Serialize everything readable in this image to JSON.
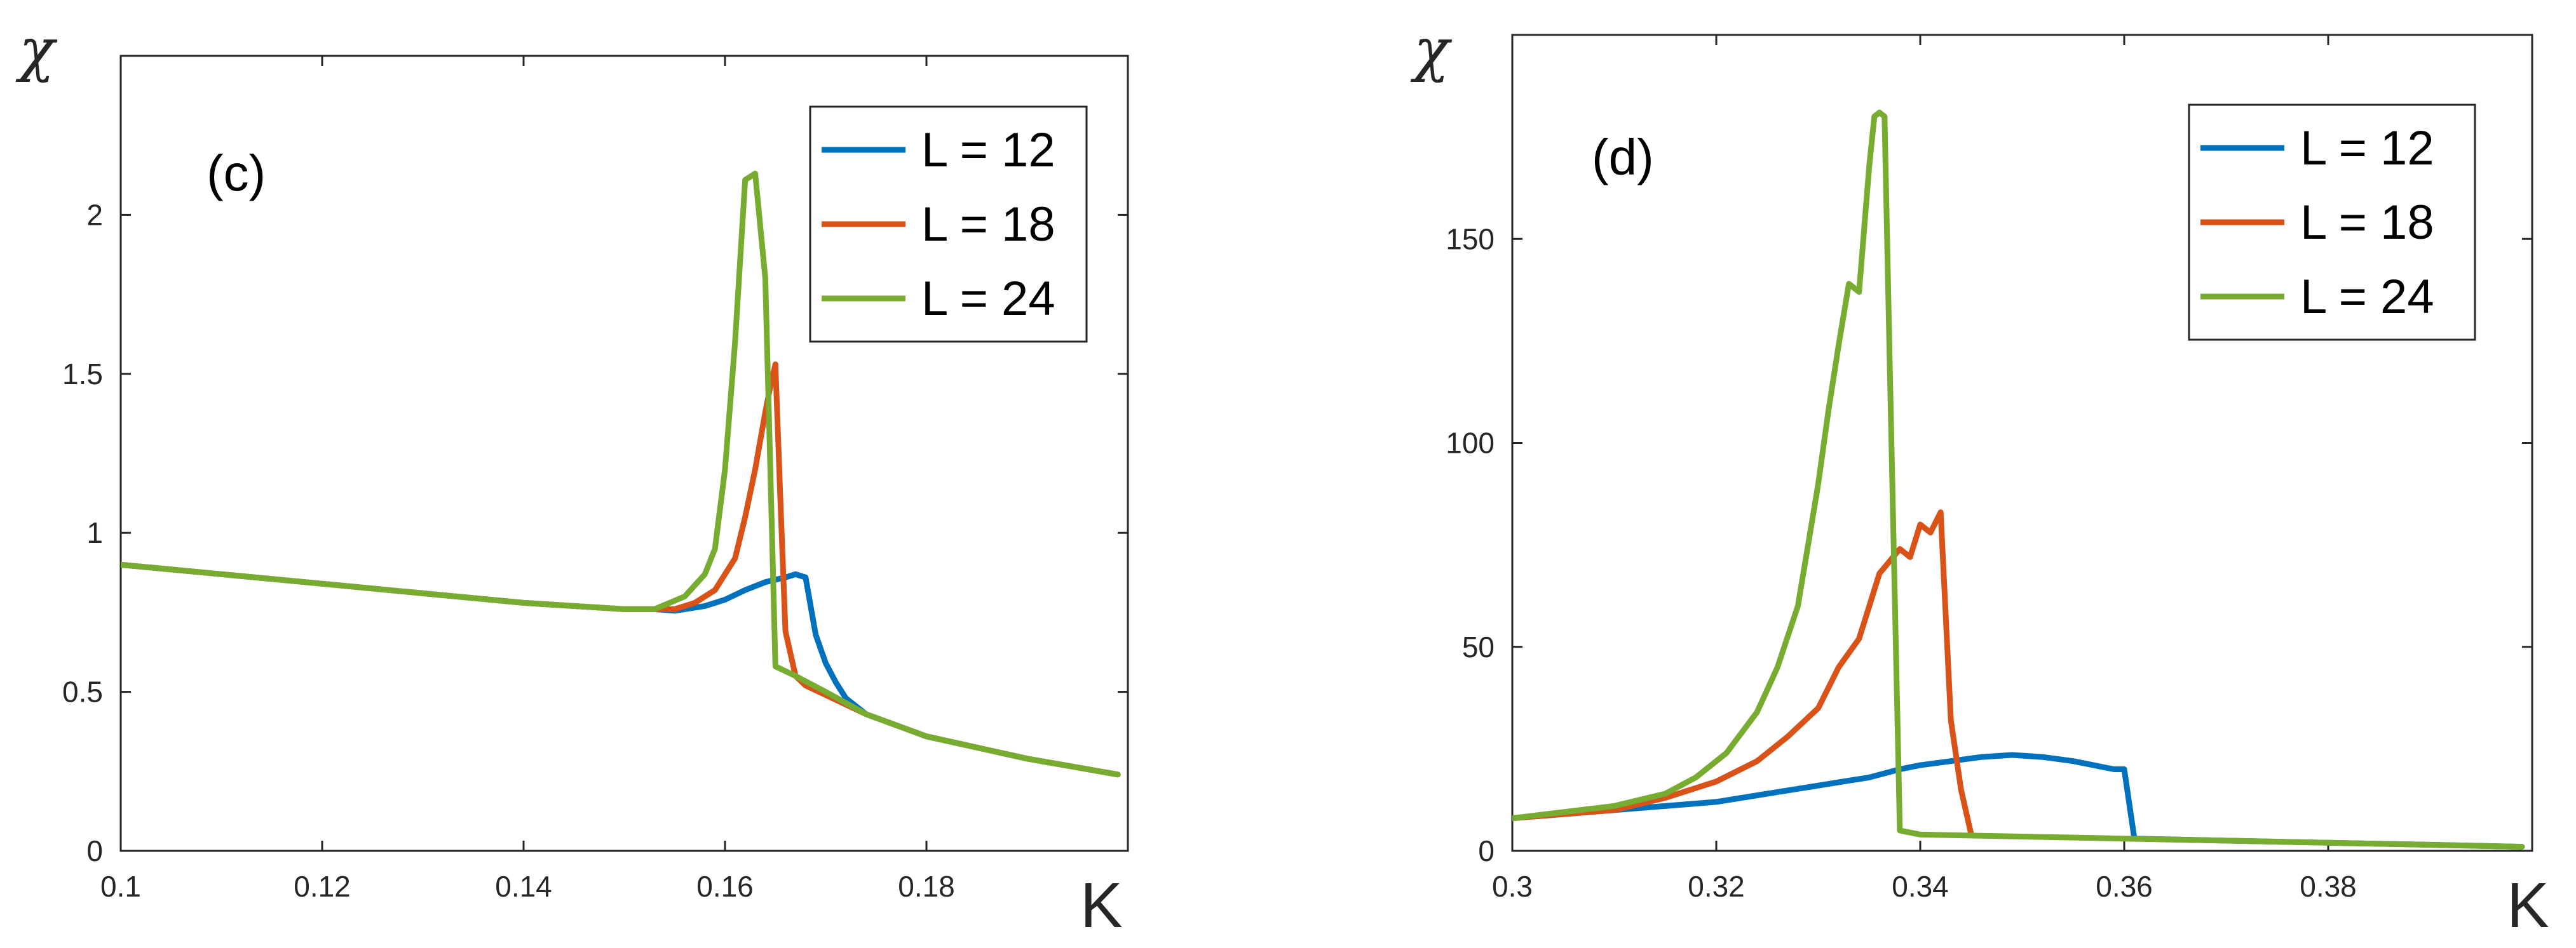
{
  "colors": {
    "L12": "#0072BD",
    "L18": "#D95319",
    "L24": "#77AC30",
    "axis": "#262626"
  },
  "chart_data": [
    {
      "type": "line",
      "panel_label": "(c)",
      "xlabel": "K",
      "ylabel": "χ",
      "xlim": [
        0.1,
        0.2
      ],
      "ylim": [
        0,
        2.5
      ],
      "xticks": [
        0.1,
        0.12,
        0.14,
        0.16,
        0.18
      ],
      "xtick_labels": [
        "0.1",
        "0.12",
        "0.14",
        "0.16",
        "0.18"
      ],
      "yticks": [
        0,
        0.5,
        1,
        1.5,
        2
      ],
      "ytick_labels": [
        "0",
        "0.5",
        "1",
        "1.5",
        "2"
      ],
      "legend_position": "top-right",
      "series": [
        {
          "name": "L = 12",
          "color": "#0072BD",
          "x": [
            0.1,
            0.11,
            0.12,
            0.13,
            0.14,
            0.15,
            0.153,
            0.155,
            0.158,
            0.16,
            0.162,
            0.164,
            0.166,
            0.167,
            0.168,
            0.169,
            0.17,
            0.171,
            0.172,
            0.174,
            0.18,
            0.19,
            0.199
          ],
          "y": [
            0.9,
            0.87,
            0.84,
            0.81,
            0.78,
            0.76,
            0.76,
            0.755,
            0.77,
            0.79,
            0.82,
            0.845,
            0.86,
            0.87,
            0.86,
            0.68,
            0.59,
            0.53,
            0.48,
            0.43,
            0.36,
            0.29,
            0.24
          ]
        },
        {
          "name": "L = 18",
          "color": "#D95319",
          "x": [
            0.1,
            0.11,
            0.12,
            0.13,
            0.14,
            0.15,
            0.155,
            0.157,
            0.159,
            0.161,
            0.162,
            0.163,
            0.164,
            0.1645,
            0.165,
            0.1655,
            0.166,
            0.167,
            0.168,
            0.17,
            0.174,
            0.18,
            0.19,
            0.199
          ],
          "y": [
            0.9,
            0.87,
            0.84,
            0.81,
            0.78,
            0.76,
            0.76,
            0.78,
            0.82,
            0.92,
            1.05,
            1.2,
            1.38,
            1.46,
            1.53,
            1.1,
            0.69,
            0.55,
            0.52,
            0.49,
            0.43,
            0.36,
            0.29,
            0.24
          ]
        },
        {
          "name": "L = 24",
          "color": "#77AC30",
          "x": [
            0.1,
            0.11,
            0.12,
            0.13,
            0.14,
            0.15,
            0.153,
            0.156,
            0.158,
            0.159,
            0.16,
            0.161,
            0.162,
            0.163,
            0.164,
            0.1645,
            0.165,
            0.167,
            0.17,
            0.174,
            0.18,
            0.19,
            0.199
          ],
          "y": [
            0.9,
            0.87,
            0.84,
            0.81,
            0.78,
            0.76,
            0.76,
            0.8,
            0.87,
            0.95,
            1.2,
            1.6,
            2.11,
            2.13,
            1.8,
            1.2,
            0.58,
            0.55,
            0.5,
            0.43,
            0.36,
            0.29,
            0.24
          ]
        }
      ]
    },
    {
      "type": "line",
      "panel_label": "(d)",
      "xlabel": "K",
      "ylabel": "χ",
      "xlim": [
        0.3,
        0.4
      ],
      "ylim": [
        0,
        200
      ],
      "xticks": [
        0.3,
        0.32,
        0.34,
        0.36,
        0.38
      ],
      "xtick_labels": [
        "0.3",
        "0.32",
        "0.34",
        "0.36",
        "0.38"
      ],
      "yticks": [
        0,
        50,
        100,
        150
      ],
      "ytick_labels": [
        "0",
        "50",
        "100",
        "150"
      ],
      "legend_position": "top-right",
      "series": [
        {
          "name": "L = 12",
          "color": "#0072BD",
          "x": [
            0.3,
            0.31,
            0.32,
            0.325,
            0.33,
            0.335,
            0.338,
            0.34,
            0.343,
            0.346,
            0.349,
            0.352,
            0.355,
            0.357,
            0.359,
            0.36,
            0.361,
            0.37,
            0.38,
            0.39,
            0.399
          ],
          "y": [
            8,
            10,
            12,
            14,
            16,
            18,
            20,
            21,
            22,
            23,
            23.5,
            23,
            22,
            21,
            20,
            20,
            3,
            2.5,
            2,
            1.5,
            1
          ]
        },
        {
          "name": "L = 18",
          "color": "#D95319",
          "x": [
            0.3,
            0.31,
            0.315,
            0.32,
            0.324,
            0.327,
            0.33,
            0.332,
            0.334,
            0.335,
            0.336,
            0.337,
            0.338,
            0.339,
            0.34,
            0.341,
            0.342,
            0.343,
            0.344,
            0.345
          ],
          "y": [
            8,
            10,
            13,
            17,
            22,
            28,
            35,
            45,
            52,
            60,
            68,
            71,
            74,
            72,
            80,
            78,
            83,
            32,
            15,
            4
          ]
        },
        {
          "name": "L = 24",
          "color": "#77AC30",
          "x": [
            0.3,
            0.31,
            0.315,
            0.318,
            0.321,
            0.324,
            0.326,
            0.328,
            0.329,
            0.33,
            0.331,
            0.332,
            0.333,
            0.334,
            0.335,
            0.3355,
            0.336,
            0.3365,
            0.337,
            0.338,
            0.34,
            0.36,
            0.38,
            0.399
          ],
          "y": [
            8,
            11,
            14,
            18,
            24,
            34,
            45,
            60,
            75,
            90,
            108,
            124,
            139,
            137,
            168,
            180,
            181,
            180,
            120,
            5,
            4,
            3,
            2,
            1
          ]
        }
      ]
    }
  ]
}
